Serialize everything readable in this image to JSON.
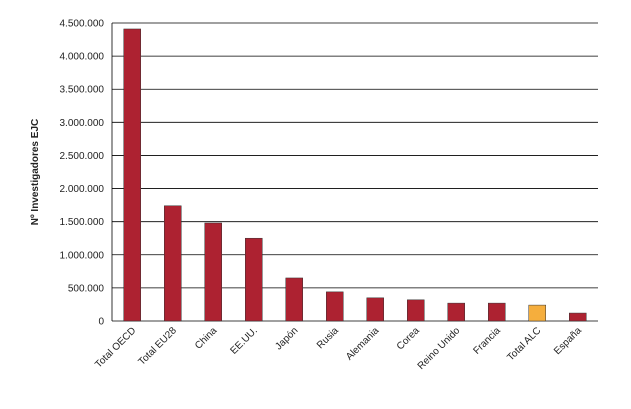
{
  "chart_data": {
    "type": "bar",
    "y_label": "Nº Investigadores EJC",
    "categories": [
      "Total OECD",
      "Total EU28",
      "China",
      "EE.UU.",
      "Japón",
      "Rusia",
      "Alemania",
      "Corea",
      "Reino Unido",
      "Francia",
      "Total ALC",
      "España"
    ],
    "values": [
      4410000,
      1740000,
      1480000,
      1250000,
      650000,
      440000,
      350000,
      320000,
      270000,
      270000,
      240000,
      120000
    ],
    "colors": [
      "#ad2231",
      "#ad2231",
      "#ad2231",
      "#ad2231",
      "#ad2231",
      "#ad2231",
      "#ad2231",
      "#ad2231",
      "#ad2231",
      "#ad2231",
      "#f5ae3d",
      "#ad2231"
    ],
    "ylim": [
      0,
      4500000
    ],
    "yticks": [
      0,
      {
        "value": 500000,
        "label": "500.000"
      },
      {
        "value": 1000000,
        "label": "1.000.000"
      },
      {
        "value": 1500000,
        "label": "1.500.000"
      },
      {
        "value": 2000000,
        "label": "2.000.000"
      },
      {
        "value": 2500000,
        "label": "2.500.000"
      },
      {
        "value": 3000000,
        "label": "3.000.000"
      },
      {
        "value": 3500000,
        "label": "3.500.000"
      },
      {
        "value": 4000000,
        "label": "4.000.000"
      },
      {
        "value": 4500000,
        "label": "4.500.000"
      }
    ],
    "grid": true
  }
}
